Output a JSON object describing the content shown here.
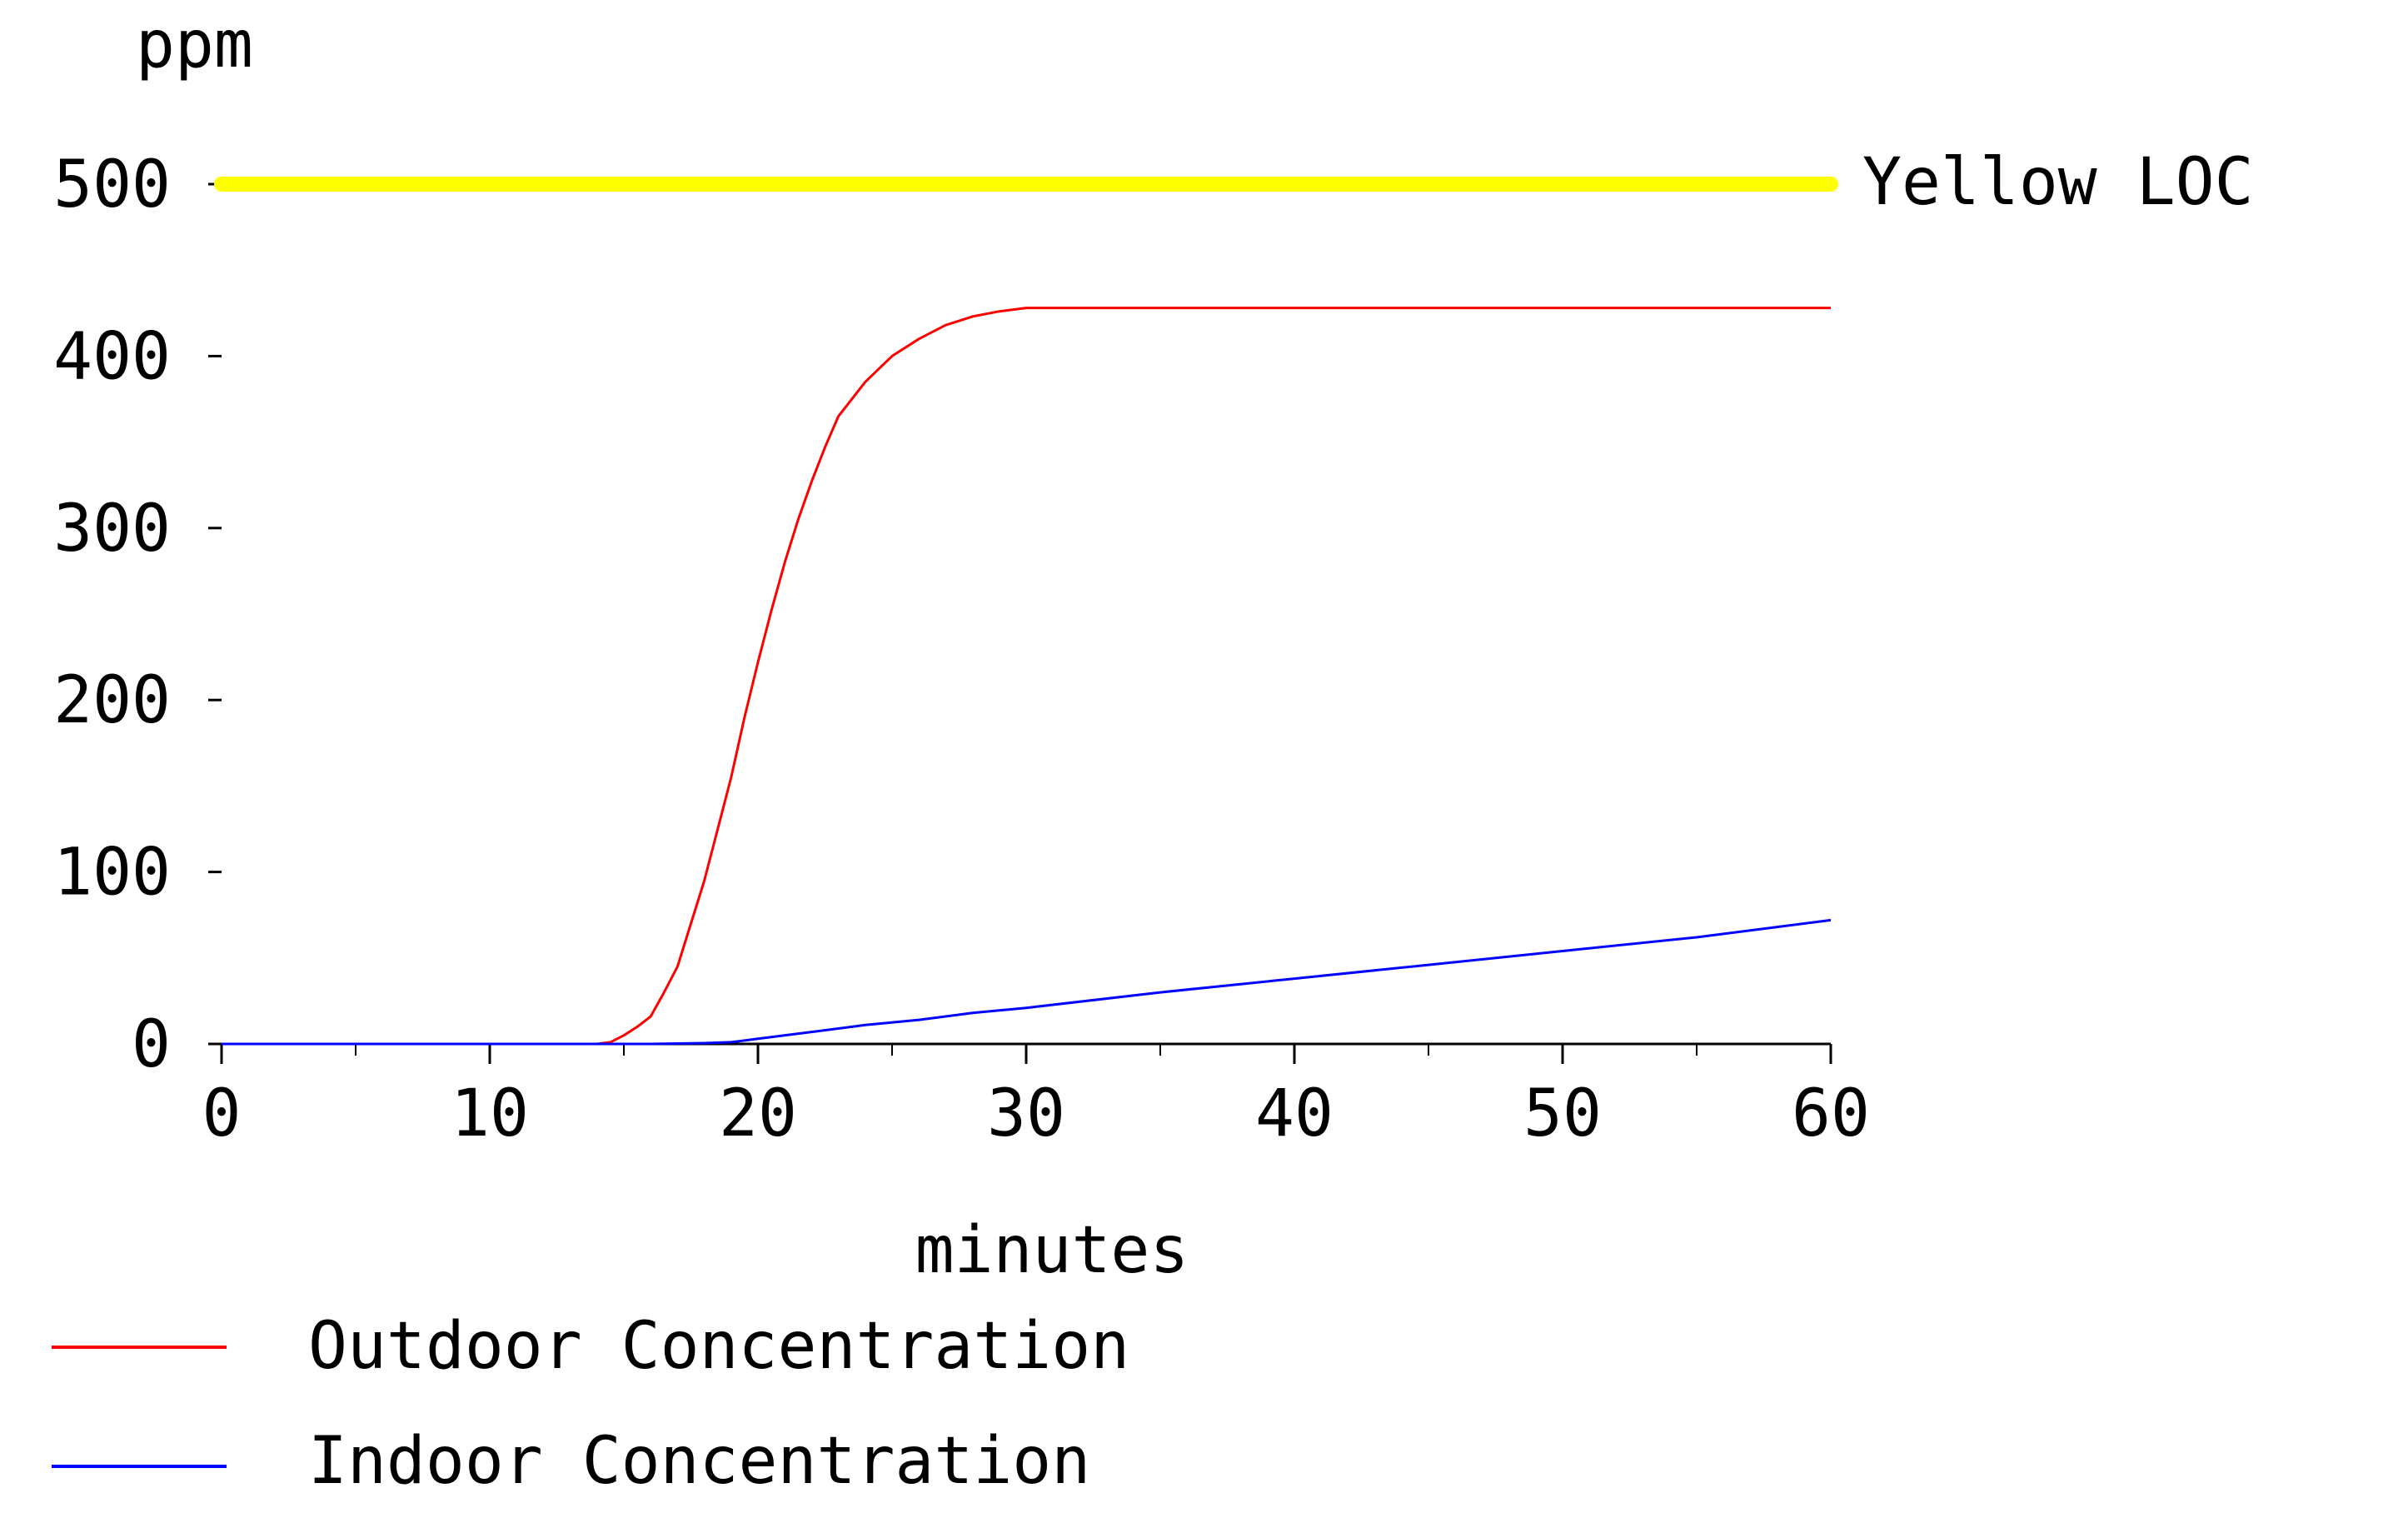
{
  "chart_data": {
    "type": "line",
    "title": "",
    "ylabel": "ppm",
    "xlabel": "minutes",
    "xlim": [
      0,
      60
    ],
    "ylim": [
      0,
      500
    ],
    "x_ticks": [
      0,
      10,
      20,
      30,
      40,
      50,
      60
    ],
    "y_ticks": [
      0,
      100,
      200,
      300,
      400,
      500
    ],
    "x_tick_labels": [
      "0",
      "10",
      "20",
      "30",
      "40",
      "50",
      "60"
    ],
    "y_tick_labels": [
      "0",
      "100",
      "200",
      "300",
      "400",
      "500"
    ],
    "x_minor_ticks": [
      5,
      15,
      25,
      35,
      45,
      55
    ],
    "grid": false,
    "legend_position": "bottom-left",
    "threshold": {
      "name": "Yellow LOC",
      "value": 500,
      "color": "#ffff00"
    },
    "series": [
      {
        "name": "Outdoor Concentration",
        "color": "#ff0000",
        "x": [
          0,
          14,
          14.5,
          15,
          15.5,
          16,
          16.5,
          17,
          17.5,
          18,
          18.5,
          19,
          19.5,
          20,
          20.5,
          21,
          21.5,
          22,
          22.5,
          23,
          24,
          25,
          26,
          27,
          28,
          29,
          30,
          40,
          50,
          60
        ],
        "y": [
          0,
          0,
          1,
          5,
          10,
          16,
          30,
          45,
          70,
          95,
          125,
          155,
          190,
          222,
          252,
          280,
          305,
          327,
          347,
          365,
          385,
          400,
          410,
          418,
          423,
          426,
          428,
          428,
          428,
          428
        ]
      },
      {
        "name": "Indoor Concentration",
        "color": "#0000ff",
        "x": [
          0,
          14,
          16,
          18,
          19,
          20,
          22,
          24,
          26,
          28,
          30,
          35,
          40,
          45,
          50,
          55,
          60
        ],
        "y": [
          0,
          0,
          0,
          0.5,
          1,
          3,
          7,
          11,
          14,
          18,
          21,
          30,
          38,
          46,
          54,
          62,
          72
        ]
      }
    ]
  }
}
